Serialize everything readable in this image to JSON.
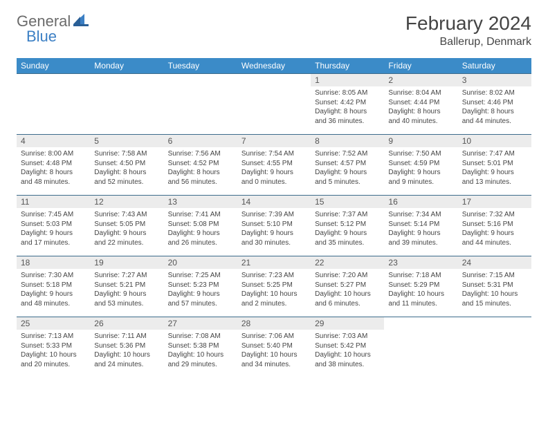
{
  "logo": {
    "general": "General",
    "blue": "Blue"
  },
  "title": "February 2024",
  "location": "Ballerup, Denmark",
  "colors": {
    "header_bg": "#3b8bc8",
    "header_text": "#ffffff",
    "daynum_bg": "#ececec",
    "border": "#3b6b8b",
    "logo_gray": "#6b6b6b",
    "logo_blue": "#3b7fc4"
  },
  "day_headers": [
    "Sunday",
    "Monday",
    "Tuesday",
    "Wednesday",
    "Thursday",
    "Friday",
    "Saturday"
  ],
  "weeks": [
    [
      {
        "blank": true
      },
      {
        "blank": true
      },
      {
        "blank": true
      },
      {
        "blank": true
      },
      {
        "num": "1",
        "sunrise": "Sunrise: 8:05 AM",
        "sunset": "Sunset: 4:42 PM",
        "daylight1": "Daylight: 8 hours",
        "daylight2": "and 36 minutes."
      },
      {
        "num": "2",
        "sunrise": "Sunrise: 8:04 AM",
        "sunset": "Sunset: 4:44 PM",
        "daylight1": "Daylight: 8 hours",
        "daylight2": "and 40 minutes."
      },
      {
        "num": "3",
        "sunrise": "Sunrise: 8:02 AM",
        "sunset": "Sunset: 4:46 PM",
        "daylight1": "Daylight: 8 hours",
        "daylight2": "and 44 minutes."
      }
    ],
    [
      {
        "num": "4",
        "sunrise": "Sunrise: 8:00 AM",
        "sunset": "Sunset: 4:48 PM",
        "daylight1": "Daylight: 8 hours",
        "daylight2": "and 48 minutes."
      },
      {
        "num": "5",
        "sunrise": "Sunrise: 7:58 AM",
        "sunset": "Sunset: 4:50 PM",
        "daylight1": "Daylight: 8 hours",
        "daylight2": "and 52 minutes."
      },
      {
        "num": "6",
        "sunrise": "Sunrise: 7:56 AM",
        "sunset": "Sunset: 4:52 PM",
        "daylight1": "Daylight: 8 hours",
        "daylight2": "and 56 minutes."
      },
      {
        "num": "7",
        "sunrise": "Sunrise: 7:54 AM",
        "sunset": "Sunset: 4:55 PM",
        "daylight1": "Daylight: 9 hours",
        "daylight2": "and 0 minutes."
      },
      {
        "num": "8",
        "sunrise": "Sunrise: 7:52 AM",
        "sunset": "Sunset: 4:57 PM",
        "daylight1": "Daylight: 9 hours",
        "daylight2": "and 5 minutes."
      },
      {
        "num": "9",
        "sunrise": "Sunrise: 7:50 AM",
        "sunset": "Sunset: 4:59 PM",
        "daylight1": "Daylight: 9 hours",
        "daylight2": "and 9 minutes."
      },
      {
        "num": "10",
        "sunrise": "Sunrise: 7:47 AM",
        "sunset": "Sunset: 5:01 PM",
        "daylight1": "Daylight: 9 hours",
        "daylight2": "and 13 minutes."
      }
    ],
    [
      {
        "num": "11",
        "sunrise": "Sunrise: 7:45 AM",
        "sunset": "Sunset: 5:03 PM",
        "daylight1": "Daylight: 9 hours",
        "daylight2": "and 17 minutes."
      },
      {
        "num": "12",
        "sunrise": "Sunrise: 7:43 AM",
        "sunset": "Sunset: 5:05 PM",
        "daylight1": "Daylight: 9 hours",
        "daylight2": "and 22 minutes."
      },
      {
        "num": "13",
        "sunrise": "Sunrise: 7:41 AM",
        "sunset": "Sunset: 5:08 PM",
        "daylight1": "Daylight: 9 hours",
        "daylight2": "and 26 minutes."
      },
      {
        "num": "14",
        "sunrise": "Sunrise: 7:39 AM",
        "sunset": "Sunset: 5:10 PM",
        "daylight1": "Daylight: 9 hours",
        "daylight2": "and 30 minutes."
      },
      {
        "num": "15",
        "sunrise": "Sunrise: 7:37 AM",
        "sunset": "Sunset: 5:12 PM",
        "daylight1": "Daylight: 9 hours",
        "daylight2": "and 35 minutes."
      },
      {
        "num": "16",
        "sunrise": "Sunrise: 7:34 AM",
        "sunset": "Sunset: 5:14 PM",
        "daylight1": "Daylight: 9 hours",
        "daylight2": "and 39 minutes."
      },
      {
        "num": "17",
        "sunrise": "Sunrise: 7:32 AM",
        "sunset": "Sunset: 5:16 PM",
        "daylight1": "Daylight: 9 hours",
        "daylight2": "and 44 minutes."
      }
    ],
    [
      {
        "num": "18",
        "sunrise": "Sunrise: 7:30 AM",
        "sunset": "Sunset: 5:18 PM",
        "daylight1": "Daylight: 9 hours",
        "daylight2": "and 48 minutes."
      },
      {
        "num": "19",
        "sunrise": "Sunrise: 7:27 AM",
        "sunset": "Sunset: 5:21 PM",
        "daylight1": "Daylight: 9 hours",
        "daylight2": "and 53 minutes."
      },
      {
        "num": "20",
        "sunrise": "Sunrise: 7:25 AM",
        "sunset": "Sunset: 5:23 PM",
        "daylight1": "Daylight: 9 hours",
        "daylight2": "and 57 minutes."
      },
      {
        "num": "21",
        "sunrise": "Sunrise: 7:23 AM",
        "sunset": "Sunset: 5:25 PM",
        "daylight1": "Daylight: 10 hours",
        "daylight2": "and 2 minutes."
      },
      {
        "num": "22",
        "sunrise": "Sunrise: 7:20 AM",
        "sunset": "Sunset: 5:27 PM",
        "daylight1": "Daylight: 10 hours",
        "daylight2": "and 6 minutes."
      },
      {
        "num": "23",
        "sunrise": "Sunrise: 7:18 AM",
        "sunset": "Sunset: 5:29 PM",
        "daylight1": "Daylight: 10 hours",
        "daylight2": "and 11 minutes."
      },
      {
        "num": "24",
        "sunrise": "Sunrise: 7:15 AM",
        "sunset": "Sunset: 5:31 PM",
        "daylight1": "Daylight: 10 hours",
        "daylight2": "and 15 minutes."
      }
    ],
    [
      {
        "num": "25",
        "sunrise": "Sunrise: 7:13 AM",
        "sunset": "Sunset: 5:33 PM",
        "daylight1": "Daylight: 10 hours",
        "daylight2": "and 20 minutes."
      },
      {
        "num": "26",
        "sunrise": "Sunrise: 7:11 AM",
        "sunset": "Sunset: 5:36 PM",
        "daylight1": "Daylight: 10 hours",
        "daylight2": "and 24 minutes."
      },
      {
        "num": "27",
        "sunrise": "Sunrise: 7:08 AM",
        "sunset": "Sunset: 5:38 PM",
        "daylight1": "Daylight: 10 hours",
        "daylight2": "and 29 minutes."
      },
      {
        "num": "28",
        "sunrise": "Sunrise: 7:06 AM",
        "sunset": "Sunset: 5:40 PM",
        "daylight1": "Daylight: 10 hours",
        "daylight2": "and 34 minutes."
      },
      {
        "num": "29",
        "sunrise": "Sunrise: 7:03 AM",
        "sunset": "Sunset: 5:42 PM",
        "daylight1": "Daylight: 10 hours",
        "daylight2": "and 38 minutes."
      },
      {
        "blank": true
      },
      {
        "blank": true
      }
    ]
  ]
}
